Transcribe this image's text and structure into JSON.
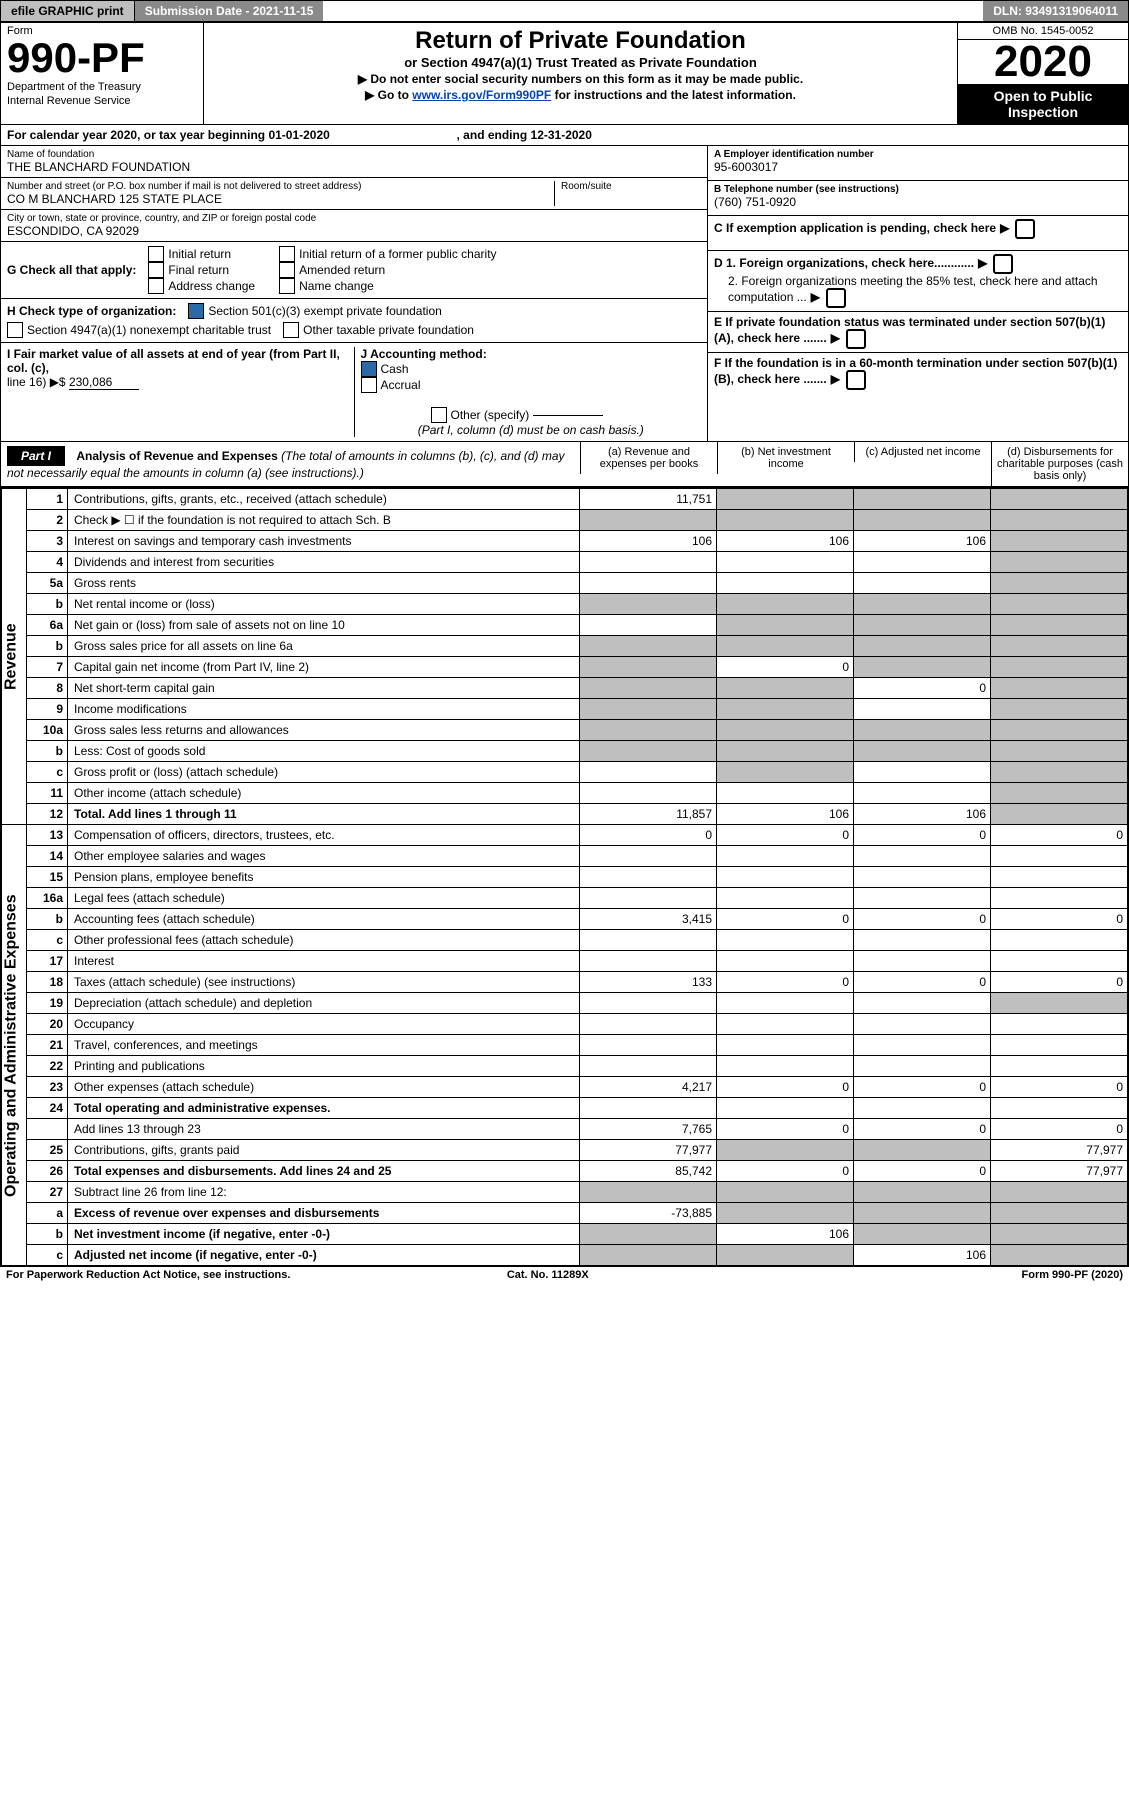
{
  "topbar": {
    "efile_label": "efile GRAPHIC print",
    "submission_label": "Submission Date - 2021-11-15",
    "dln_label": "DLN: 93491319064011"
  },
  "header": {
    "form_word": "Form",
    "form_number": "990-PF",
    "dept": "Department of the Treasury",
    "irs": "Internal Revenue Service",
    "title": "Return of Private Foundation",
    "subtitle": "or Section 4947(a)(1) Trust Treated as Private Foundation",
    "note1": "▶ Do not enter social security numbers on this form as it may be made public.",
    "note2_pre": "▶ Go to ",
    "note2_link": "www.irs.gov/Form990PF",
    "note2_post": " for instructions and the latest information.",
    "omb": "OMB No. 1545-0052",
    "year": "2020",
    "open": "Open to Public Inspection"
  },
  "cal": {
    "text": "For calendar year 2020, or tax year beginning 01-01-2020",
    "ending": ", and ending 12-31-2020"
  },
  "id": {
    "name_lbl": "Name of foundation",
    "name": "THE BLANCHARD FOUNDATION",
    "addr_lbl": "Number and street (or P.O. box number if mail is not delivered to street address)",
    "addr": "CO M BLANCHARD 125 STATE PLACE",
    "room_lbl": "Room/suite",
    "city_lbl": "City or town, state or province, country, and ZIP or foreign postal code",
    "city": "ESCONDIDO, CA  92029",
    "A_lbl": "A Employer identification number",
    "A": "95-6003017",
    "B_lbl": "B Telephone number (see instructions)",
    "B": "(760) 751-0920",
    "C": "C If exemption application is pending, check here",
    "D1": "D 1. Foreign organizations, check here............",
    "D2": "2. Foreign organizations meeting the 85% test, check here and attach computation ...",
    "E": "E If private foundation status was terminated under section 507(b)(1)(A), check here .......",
    "F": "F If the foundation is in a 60-month termination under section 507(b)(1)(B), check here .......",
    "G_lbl": "G Check all that apply:",
    "G_opts": [
      "Initial return",
      "Final return",
      "Address change",
      "Initial return of a former public charity",
      "Amended return",
      "Name change"
    ],
    "H_lbl": "H Check type of organization:",
    "H_opt1": "Section 501(c)(3) exempt private foundation",
    "H_opt2": "Section 4947(a)(1) nonexempt charitable trust",
    "H_opt3": "Other taxable private foundation",
    "I_lbl1": "I Fair market value of all assets at end of year (from Part II, col. (c),",
    "I_lbl2": "line 16) ▶$ ",
    "I_amount": "230,086",
    "J_lbl": "J Accounting method:",
    "J_opts": [
      "Cash",
      "Accrual"
    ],
    "J_other": "Other (specify)",
    "J_note": "(Part I, column (d) must be on cash basis.)"
  },
  "part1": {
    "hdr": "Part I",
    "title": "Analysis of Revenue and Expenses",
    "title_note": " (The total of amounts in columns (b), (c), and (d) may not necessarily equal the amounts in column (a) (see instructions).)",
    "col_a": "(a) Revenue and expenses per books",
    "col_b": "(b) Net investment income",
    "col_c": "(c) Adjusted net income",
    "col_d": "(d) Disbursements for charitable purposes (cash basis only)",
    "side_revenue": "Revenue",
    "side_expenses": "Operating and Administrative Expenses",
    "rows": [
      {
        "n": "1",
        "lbl": "Contributions, gifts, grants, etc., received (attach schedule)",
        "a": "11,751",
        "b": "",
        "c": "",
        "d": "",
        "shade_b": true,
        "shade_c": true,
        "shade_d": true
      },
      {
        "n": "2",
        "lbl": "Check ▶ ☐ if the foundation is not required to attach Sch. B",
        "a": "",
        "b": "",
        "c": "",
        "d": "",
        "shade_a": true,
        "shade_b": true,
        "shade_c": true,
        "shade_d": true,
        "bold_not": true
      },
      {
        "n": "3",
        "lbl": "Interest on savings and temporary cash investments",
        "a": "106",
        "b": "106",
        "c": "106",
        "d": "",
        "shade_d": true
      },
      {
        "n": "4",
        "lbl": "Dividends and interest from securities",
        "a": "",
        "b": "",
        "c": "",
        "d": "",
        "shade_d": true
      },
      {
        "n": "5a",
        "lbl": "Gross rents",
        "a": "",
        "b": "",
        "c": "",
        "d": "",
        "shade_d": true
      },
      {
        "n": "b",
        "lbl": "Net rental income or (loss)",
        "a": "",
        "b": "",
        "c": "",
        "d": "",
        "shade_a": true,
        "shade_b": true,
        "shade_c": true,
        "shade_d": true,
        "inline": true
      },
      {
        "n": "6a",
        "lbl": "Net gain or (loss) from sale of assets not on line 10",
        "a": "",
        "b": "",
        "c": "",
        "d": "",
        "shade_b": true,
        "shade_c": true,
        "shade_d": true
      },
      {
        "n": "b",
        "lbl": "Gross sales price for all assets on line 6a",
        "a": "",
        "b": "",
        "c": "",
        "d": "",
        "shade_a": true,
        "shade_b": true,
        "shade_c": true,
        "shade_d": true,
        "inline": true
      },
      {
        "n": "7",
        "lbl": "Capital gain net income (from Part IV, line 2)",
        "a": "",
        "b": "0",
        "c": "",
        "d": "",
        "shade_a": true,
        "shade_c": true,
        "shade_d": true
      },
      {
        "n": "8",
        "lbl": "Net short-term capital gain",
        "a": "",
        "b": "",
        "c": "0",
        "d": "",
        "shade_a": true,
        "shade_b": true,
        "shade_d": true
      },
      {
        "n": "9",
        "lbl": "Income modifications",
        "a": "",
        "b": "",
        "c": "",
        "d": "",
        "shade_a": true,
        "shade_b": true,
        "shade_d": true
      },
      {
        "n": "10a",
        "lbl": "Gross sales less returns and allowances",
        "a": "",
        "b": "",
        "c": "",
        "d": "",
        "shade_a": true,
        "shade_b": true,
        "shade_c": true,
        "shade_d": true,
        "inline": true
      },
      {
        "n": "b",
        "lbl": "Less: Cost of goods sold",
        "a": "",
        "b": "",
        "c": "",
        "d": "",
        "shade_a": true,
        "shade_b": true,
        "shade_c": true,
        "shade_d": true,
        "inline": true
      },
      {
        "n": "c",
        "lbl": "Gross profit or (loss) (attach schedule)",
        "a": "",
        "b": "",
        "c": "",
        "d": "",
        "shade_b": true,
        "shade_d": true
      },
      {
        "n": "11",
        "lbl": "Other income (attach schedule)",
        "a": "",
        "b": "",
        "c": "",
        "d": "",
        "shade_d": true
      },
      {
        "n": "12",
        "lbl": "Total. Add lines 1 through 11",
        "a": "11,857",
        "b": "106",
        "c": "106",
        "d": "",
        "bold": true,
        "shade_d": true
      },
      {
        "n": "13",
        "lbl": "Compensation of officers, directors, trustees, etc.",
        "a": "0",
        "b": "0",
        "c": "0",
        "d": "0"
      },
      {
        "n": "14",
        "lbl": "Other employee salaries and wages",
        "a": "",
        "b": "",
        "c": "",
        "d": ""
      },
      {
        "n": "15",
        "lbl": "Pension plans, employee benefits",
        "a": "",
        "b": "",
        "c": "",
        "d": ""
      },
      {
        "n": "16a",
        "lbl": "Legal fees (attach schedule)",
        "a": "",
        "b": "",
        "c": "",
        "d": ""
      },
      {
        "n": "b",
        "lbl": "Accounting fees (attach schedule)",
        "a": "3,415",
        "b": "0",
        "c": "0",
        "d": "0"
      },
      {
        "n": "c",
        "lbl": "Other professional fees (attach schedule)",
        "a": "",
        "b": "",
        "c": "",
        "d": ""
      },
      {
        "n": "17",
        "lbl": "Interest",
        "a": "",
        "b": "",
        "c": "",
        "d": ""
      },
      {
        "n": "18",
        "lbl": "Taxes (attach schedule) (see instructions)",
        "a": "133",
        "b": "0",
        "c": "0",
        "d": "0"
      },
      {
        "n": "19",
        "lbl": "Depreciation (attach schedule) and depletion",
        "a": "",
        "b": "",
        "c": "",
        "d": "",
        "shade_d": true
      },
      {
        "n": "20",
        "lbl": "Occupancy",
        "a": "",
        "b": "",
        "c": "",
        "d": ""
      },
      {
        "n": "21",
        "lbl": "Travel, conferences, and meetings",
        "a": "",
        "b": "",
        "c": "",
        "d": ""
      },
      {
        "n": "22",
        "lbl": "Printing and publications",
        "a": "",
        "b": "",
        "c": "",
        "d": ""
      },
      {
        "n": "23",
        "lbl": "Other expenses (attach schedule)",
        "a": "4,217",
        "b": "0",
        "c": "0",
        "d": "0"
      },
      {
        "n": "24",
        "lbl": "Total operating and administrative expenses.",
        "a": "",
        "b": "",
        "c": "",
        "d": "",
        "bold": true,
        "noborder": true
      },
      {
        "n": "",
        "lbl": "Add lines 13 through 23",
        "a": "7,765",
        "b": "0",
        "c": "0",
        "d": "0"
      },
      {
        "n": "25",
        "lbl": "Contributions, gifts, grants paid",
        "a": "77,977",
        "b": "",
        "c": "",
        "d": "77,977",
        "shade_b": true,
        "shade_c": true
      },
      {
        "n": "26",
        "lbl": "Total expenses and disbursements. Add lines 24 and 25",
        "a": "85,742",
        "b": "0",
        "c": "0",
        "d": "77,977",
        "bold": true
      },
      {
        "n": "27",
        "lbl": "Subtract line 26 from line 12:",
        "a": "",
        "b": "",
        "c": "",
        "d": "",
        "shade_a": true,
        "shade_b": true,
        "shade_c": true,
        "shade_d": true
      },
      {
        "n": "a",
        "lbl": "Excess of revenue over expenses and disbursements",
        "a": "-73,885",
        "b": "",
        "c": "",
        "d": "",
        "bold": true,
        "shade_b": true,
        "shade_c": true,
        "shade_d": true
      },
      {
        "n": "b",
        "lbl": "Net investment income (if negative, enter -0-)",
        "a": "",
        "b": "106",
        "c": "",
        "d": "",
        "bold": true,
        "shade_a": true,
        "shade_c": true,
        "shade_d": true
      },
      {
        "n": "c",
        "lbl": "Adjusted net income (if negative, enter -0-)",
        "a": "",
        "b": "",
        "c": "106",
        "d": "",
        "bold": true,
        "shade_a": true,
        "shade_b": true,
        "shade_d": true
      }
    ]
  },
  "footer": {
    "left": "For Paperwork Reduction Act Notice, see instructions.",
    "mid": "Cat. No. 11289X",
    "right": "Form 990-PF (2020)"
  }
}
